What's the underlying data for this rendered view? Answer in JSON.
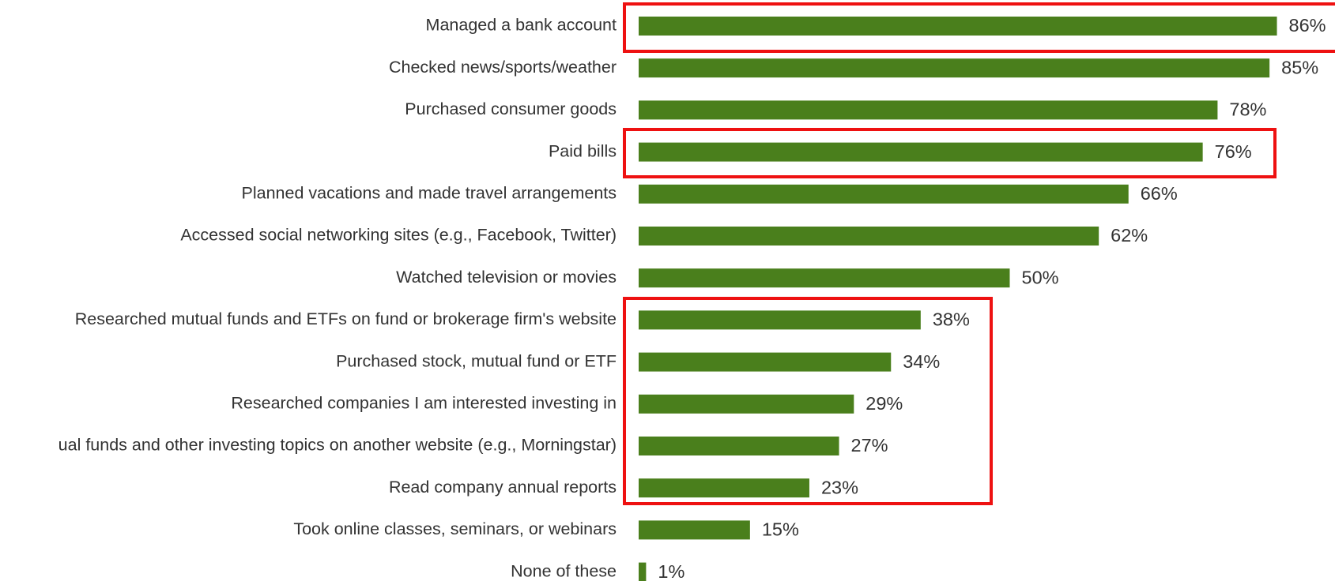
{
  "chart_data": {
    "type": "bar",
    "orientation": "horizontal",
    "color": "#4a7f1c",
    "categories": [
      "Managed a bank account",
      "Checked news/sports/weather",
      "Purchased consumer goods",
      "Paid bills",
      "Planned vacations and made travel arrangements",
      "Accessed social networking sites (e.g., Facebook, Twitter)",
      "Watched television or movies",
      "Researched mutual funds and ETFs on fund or brokerage firm's website",
      "Purchased stock, mutual fund or ETF",
      "Researched companies I am interested investing in",
      "ual funds and other investing topics on another website (e.g., Morningstar)",
      "Read company annual reports",
      "Took online classes, seminars, or webinars",
      "None of these"
    ],
    "values": [
      86,
      85,
      78,
      76,
      66,
      62,
      50,
      38,
      34,
      29,
      27,
      23,
      15,
      1
    ],
    "value_labels": [
      "86%",
      "85%",
      "78%",
      "76%",
      "66%",
      "62%",
      "50%",
      "38%",
      "34%",
      "29%",
      "27%",
      "23%",
      "15%",
      "1%"
    ]
  }
}
